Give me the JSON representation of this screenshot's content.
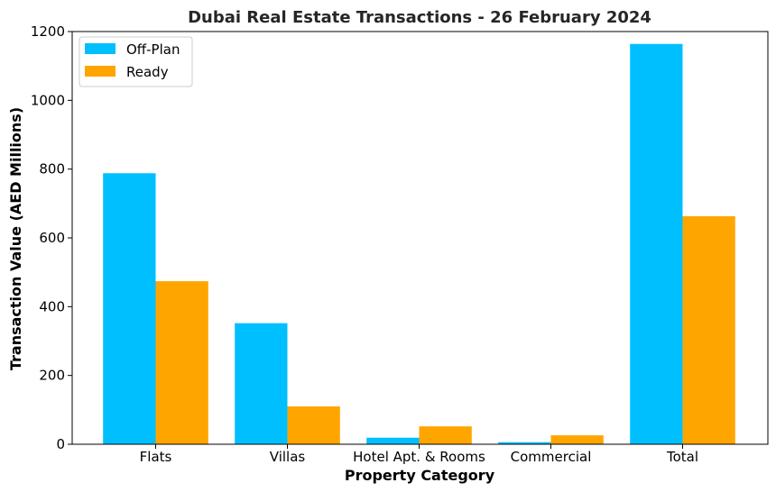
{
  "chart_data": {
    "type": "bar",
    "title": "Dubai Real Estate Transactions - 26 February 2024",
    "xlabel": "Property Category",
    "ylabel": "Transaction Value (AED Millions)",
    "categories": [
      "Flats",
      "Villas",
      "Hotel Apt. & Rooms",
      "Commercial",
      "Total"
    ],
    "series": [
      {
        "name": "Off-Plan",
        "color": "#00BFFF",
        "values": [
          788,
          352,
          19,
          6,
          1164
        ]
      },
      {
        "name": "Ready",
        "color": "#FFA500",
        "values": [
          474,
          110,
          52,
          26,
          663
        ]
      }
    ],
    "ylim": [
      0,
      1200
    ],
    "yticks": [
      0,
      200,
      400,
      600,
      800,
      1000,
      1200
    ],
    "grid": false,
    "legend_position": "top-left"
  }
}
